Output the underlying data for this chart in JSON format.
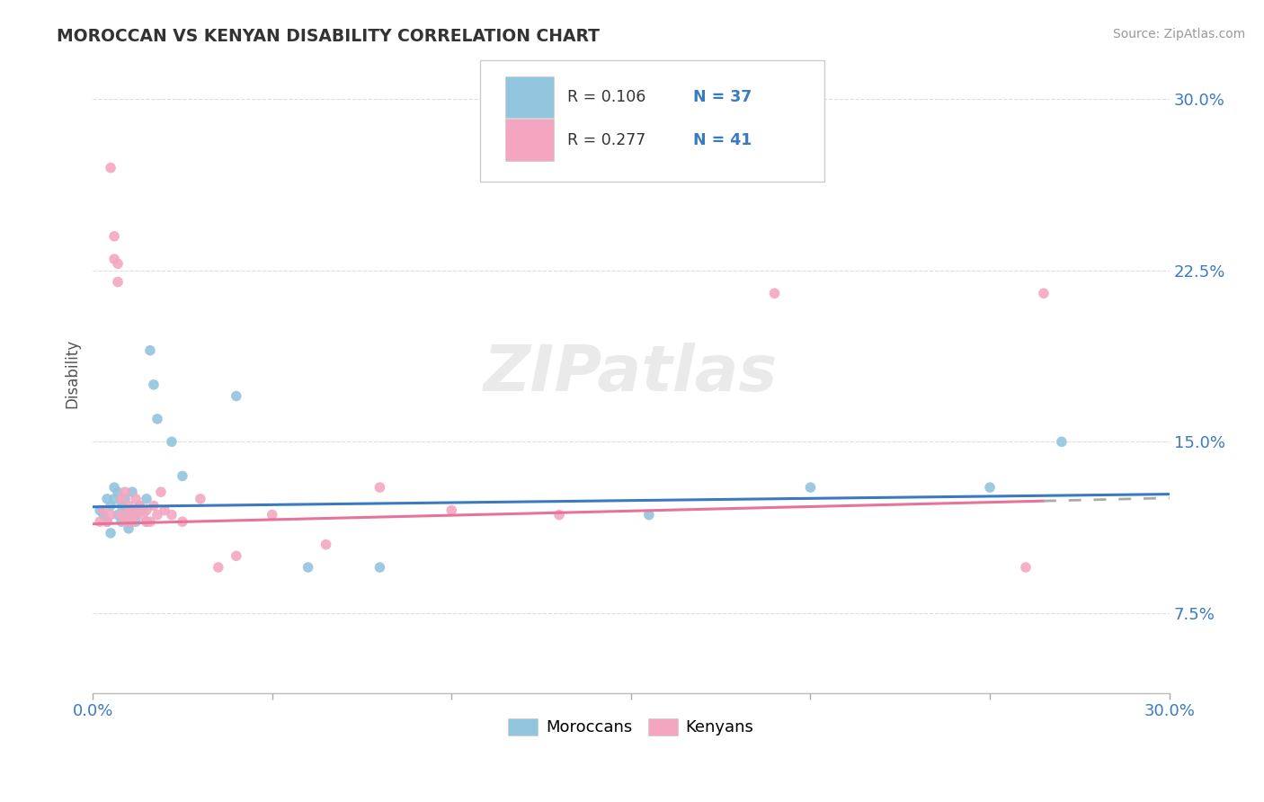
{
  "title": "MOROCCAN VS KENYAN DISABILITY CORRELATION CHART",
  "source": "Source: ZipAtlas.com",
  "ylabel": "Disability",
  "xlim": [
    0.0,
    0.3
  ],
  "ylim": [
    0.04,
    0.32
  ],
  "yticks": [
    0.075,
    0.15,
    0.225,
    0.3
  ],
  "ytick_labels": [
    "7.5%",
    "15.0%",
    "22.5%",
    "30.0%"
  ],
  "xticks": [
    0.0,
    0.05,
    0.1,
    0.15,
    0.2,
    0.25,
    0.3
  ],
  "moroccan_R": 0.106,
  "moroccan_N": 37,
  "kenyan_R": 0.277,
  "kenyan_N": 41,
  "moroccan_color": "#92c5de",
  "kenyan_color": "#f4a6c0",
  "moroccan_line_color": "#3a7abf",
  "kenyan_line_color": "#e8739a",
  "watermark": "ZIPatlas",
  "moroccan_x": [
    0.002,
    0.003,
    0.004,
    0.004,
    0.005,
    0.005,
    0.006,
    0.006,
    0.007,
    0.007,
    0.008,
    0.008,
    0.009,
    0.009,
    0.01,
    0.01,
    0.01,
    0.011,
    0.011,
    0.012,
    0.012,
    0.013,
    0.014,
    0.015,
    0.015,
    0.016,
    0.017,
    0.018,
    0.022,
    0.025,
    0.04,
    0.06,
    0.08,
    0.155,
    0.2,
    0.25,
    0.27
  ],
  "moroccan_y": [
    0.12,
    0.118,
    0.125,
    0.115,
    0.122,
    0.11,
    0.13,
    0.125,
    0.128,
    0.118,
    0.115,
    0.122,
    0.12,
    0.125,
    0.112,
    0.118,
    0.115,
    0.12,
    0.128,
    0.115,
    0.118,
    0.122,
    0.12,
    0.125,
    0.115,
    0.19,
    0.175,
    0.16,
    0.15,
    0.135,
    0.17,
    0.095,
    0.095,
    0.118,
    0.13,
    0.13,
    0.15
  ],
  "kenyan_x": [
    0.002,
    0.003,
    0.004,
    0.005,
    0.005,
    0.006,
    0.006,
    0.007,
    0.007,
    0.008,
    0.008,
    0.009,
    0.009,
    0.01,
    0.01,
    0.011,
    0.011,
    0.012,
    0.012,
    0.013,
    0.014,
    0.015,
    0.015,
    0.016,
    0.017,
    0.018,
    0.019,
    0.02,
    0.022,
    0.025,
    0.03,
    0.035,
    0.04,
    0.05,
    0.065,
    0.08,
    0.1,
    0.13,
    0.19,
    0.26,
    0.265
  ],
  "kenyan_y": [
    0.115,
    0.12,
    0.115,
    0.27,
    0.118,
    0.23,
    0.24,
    0.228,
    0.22,
    0.118,
    0.125,
    0.115,
    0.128,
    0.122,
    0.118,
    0.115,
    0.12,
    0.118,
    0.125,
    0.122,
    0.118,
    0.115,
    0.12,
    0.115,
    0.122,
    0.118,
    0.128,
    0.12,
    0.118,
    0.115,
    0.125,
    0.095,
    0.1,
    0.118,
    0.105,
    0.13,
    0.12,
    0.118,
    0.215,
    0.095,
    0.215
  ],
  "moroccan_line_slope": 0.0185,
  "moroccan_line_intercept": 0.1215,
  "kenyan_line_slope": 0.038,
  "kenyan_line_intercept": 0.114
}
